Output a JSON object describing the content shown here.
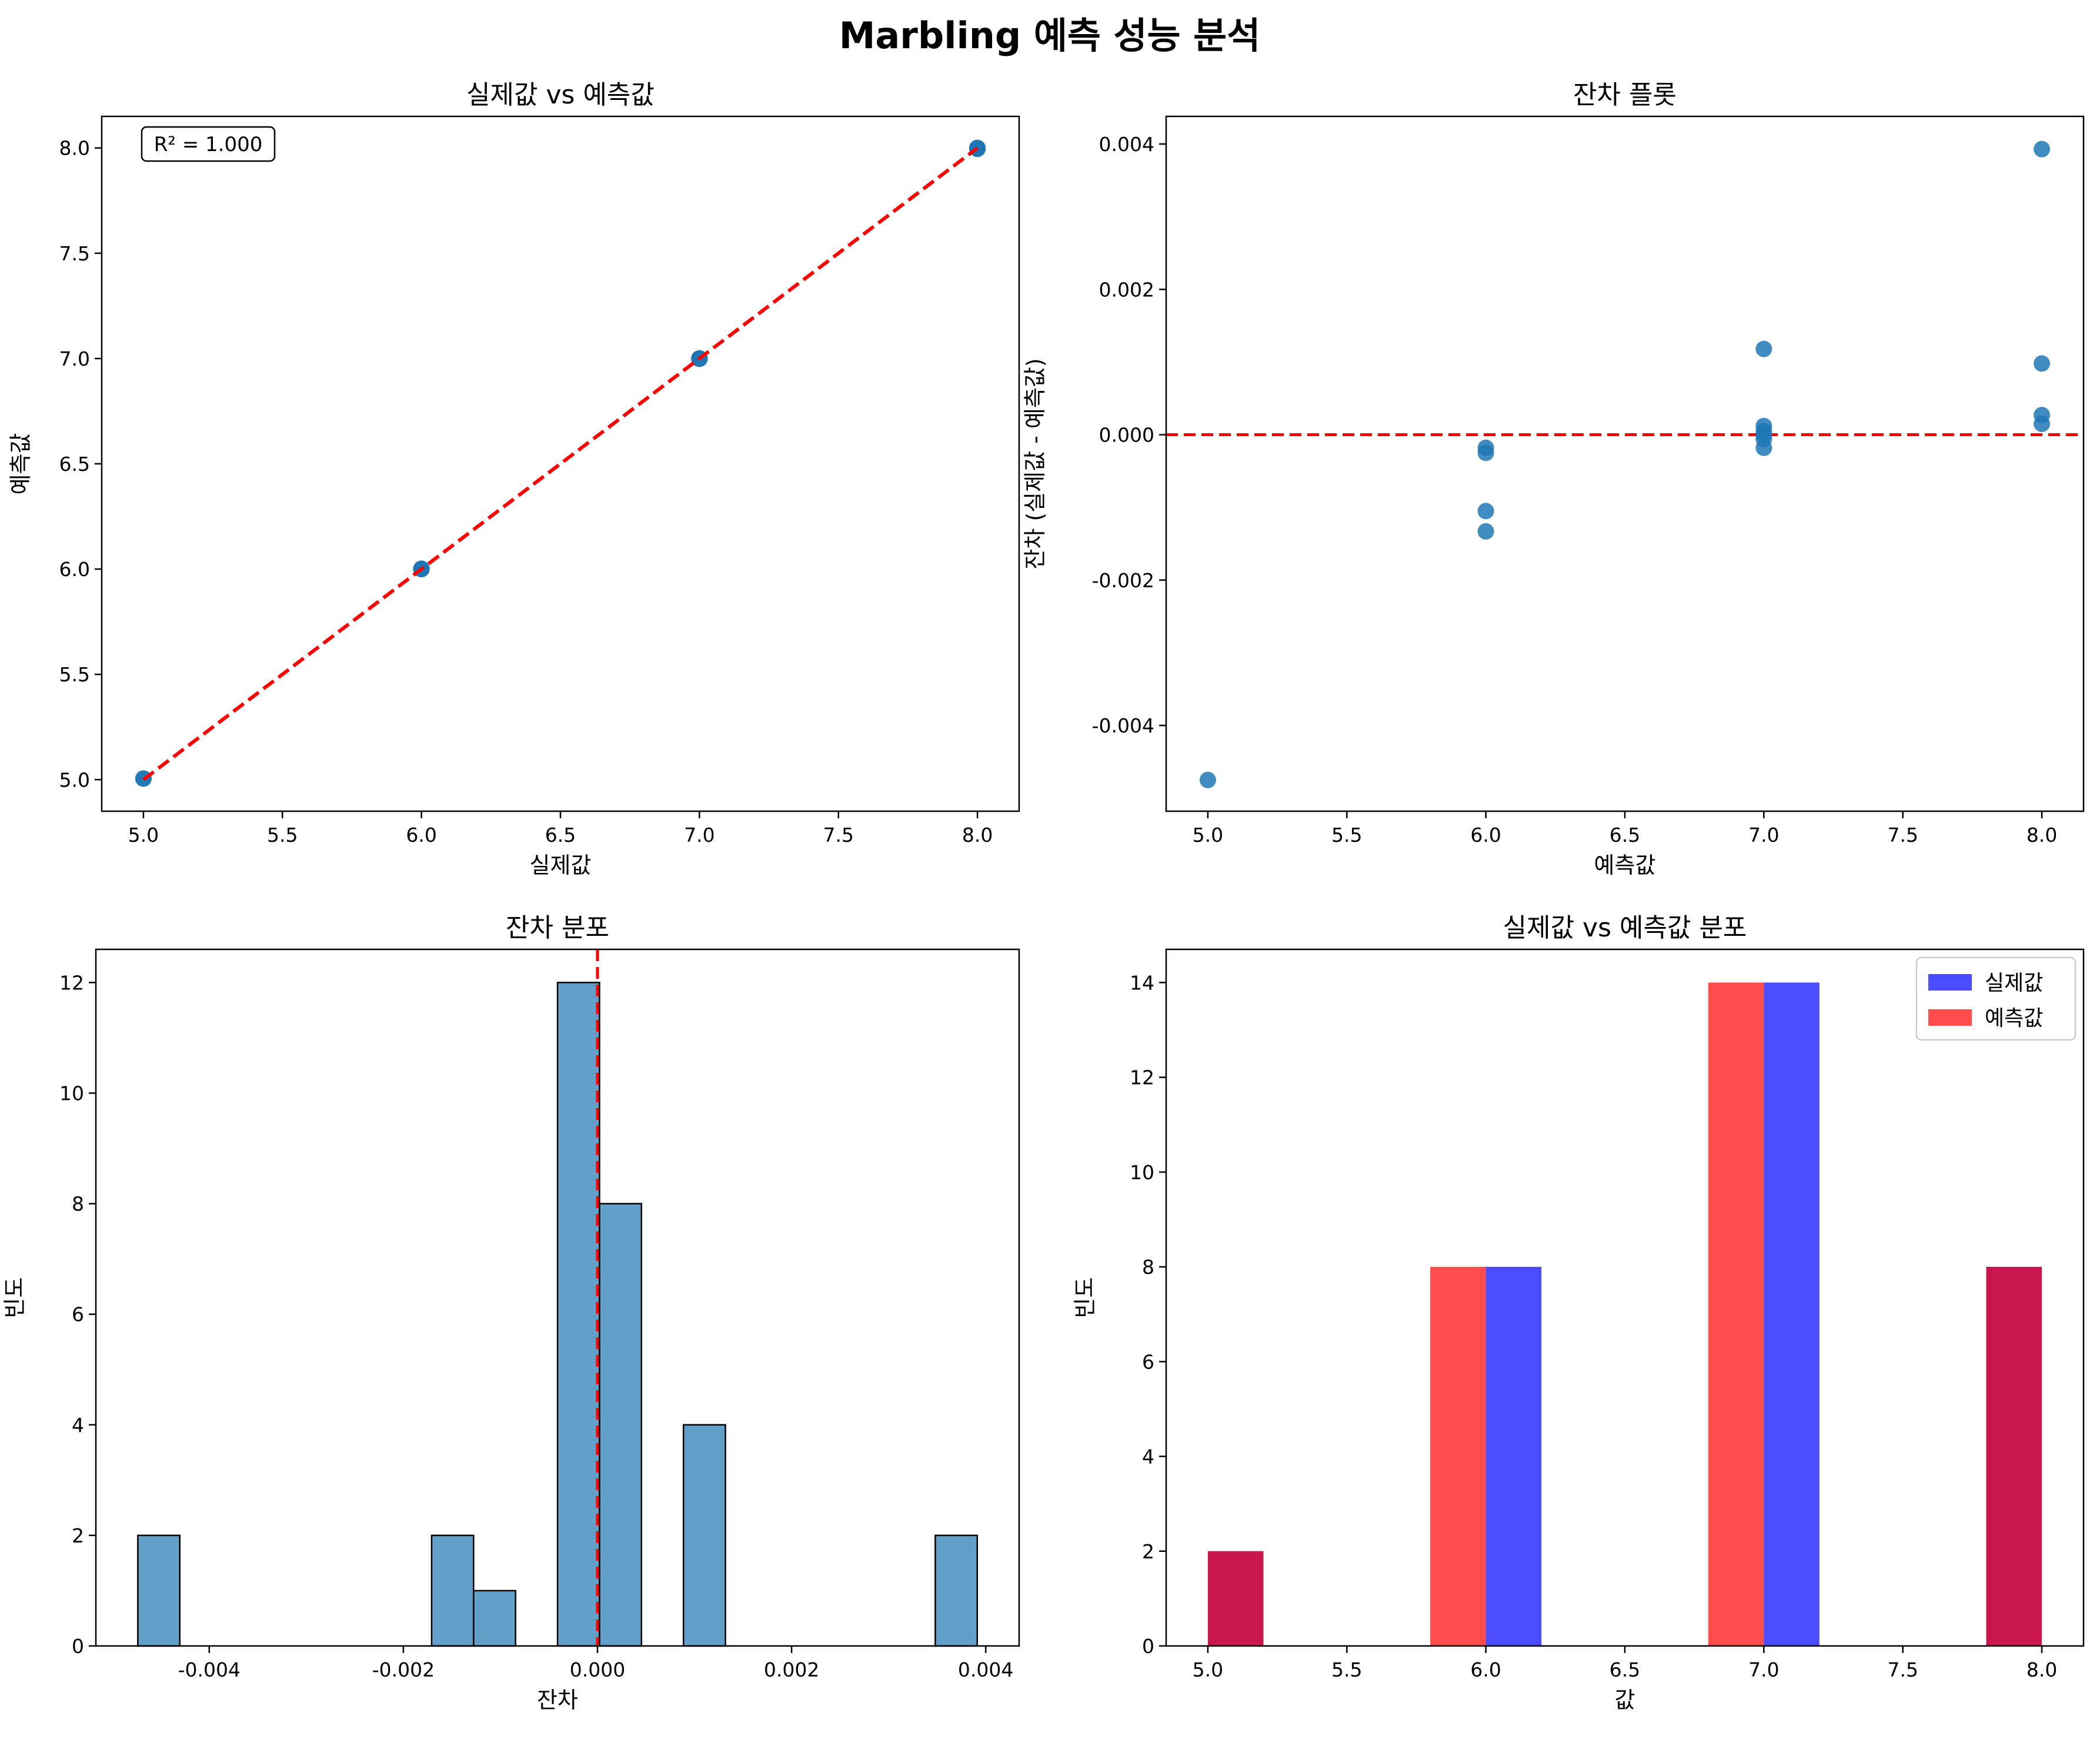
{
  "suptitle": "Marbling 예측 성능 분석",
  "colors": {
    "scatter": "#1f77b4",
    "hist": "#1f77b4",
    "ref_line": "#ff0000",
    "actual": "#0000ff",
    "predicted": "#ff0000"
  },
  "chart_data": [
    {
      "type": "scatter",
      "title": "실제값 vs 예측값",
      "xlabel": "실제값",
      "ylabel": "예측값",
      "xlim": [
        4.85,
        8.15
      ],
      "ylim": [
        4.85,
        8.15
      ],
      "xticks": [
        5.0,
        5.5,
        6.0,
        6.5,
        7.0,
        7.5,
        8.0
      ],
      "yticks": [
        5.0,
        5.5,
        6.0,
        6.5,
        7.0,
        7.5,
        8.0
      ],
      "x": [
        5,
        5,
        6,
        6,
        6,
        6,
        6,
        6,
        6,
        6,
        7,
        7,
        7,
        7,
        7,
        7,
        7,
        7,
        7,
        7,
        7,
        7,
        7,
        7,
        8,
        8,
        8,
        8,
        8,
        8,
        8,
        8
      ],
      "y": [
        5.005,
        5.005,
        6.0002,
        6.0002,
        6.0003,
        6.0003,
        6.0011,
        6.0011,
        6.0013,
        6.0013,
        6.9999,
        6.9999,
        6.9999,
        6.9999,
        7.0,
        7.0,
        7.0,
        7.0,
        7.0001,
        7.0001,
        7.0002,
        7.0002,
        6.9988,
        6.9988,
        7.996,
        7.996,
        7.999,
        7.999,
        7.9997,
        7.9997,
        7.9998,
        7.9998
      ],
      "reference_line": {
        "x": [
          5,
          8
        ],
        "y": [
          5,
          8
        ],
        "style": "dashed"
      },
      "annotation": "R² = 1.000"
    },
    {
      "type": "scatter",
      "title": "잔차 플롯",
      "xlabel": "예측값",
      "ylabel": "잔차 (실제값 - 예측값)",
      "xlim": [
        4.85,
        8.15
      ],
      "ylim": [
        -0.00518,
        0.00438
      ],
      "xticks": [
        5.0,
        5.5,
        6.0,
        6.5,
        7.0,
        7.5,
        8.0
      ],
      "yticks": [
        -0.004,
        -0.002,
        0.0,
        0.002,
        0.004
      ],
      "ytick_labels": [
        "-0.004",
        "-0.002",
        "0.000",
        "0.002",
        "0.004"
      ],
      "x": [
        5,
        6,
        6,
        6,
        6,
        7,
        7,
        7,
        7,
        7,
        7,
        8,
        8,
        8,
        8
      ],
      "y": [
        -0.00475,
        -0.00018,
        -0.00025,
        -0.00105,
        -0.00133,
        0.00118,
        0.00012,
        5e-05,
        0.0,
        -6e-05,
        -0.00018,
        0.00393,
        0.00098,
        0.00027,
        0.00015
      ],
      "reference_line": {
        "y": 0.0,
        "style": "dashed"
      }
    },
    {
      "type": "bar",
      "subtype": "histogram",
      "title": "잔차 분포",
      "xlabel": "잔차",
      "ylabel": "빈도",
      "xlim": [
        -0.0051683,
        0.0043443
      ],
      "ylim": [
        0,
        12.6
      ],
      "xticks": [
        -0.004,
        -0.002,
        0.0,
        0.002,
        0.004
      ],
      "xtick_labels": [
        "-0.004",
        "-0.002",
        "0.000",
        "0.002",
        "0.004"
      ],
      "yticks": [
        0,
        2,
        4,
        6,
        8,
        10,
        12
      ],
      "bin_start": -0.0047359,
      "bin_width": 0.00043244,
      "counts": [
        2,
        0,
        0,
        0,
        0,
        0,
        0,
        2,
        1,
        0,
        12,
        8,
        0,
        4,
        0,
        0,
        0,
        0,
        0,
        2
      ],
      "reference_line": {
        "x": 0.0,
        "style": "dashed"
      }
    },
    {
      "type": "bar",
      "subtype": "overlaid histogram",
      "title": "실제값 vs 예측값 분포",
      "xlabel": "값",
      "ylabel": "빈도",
      "xlim": [
        4.85,
        8.15
      ],
      "ylim": [
        0,
        14.7
      ],
      "xticks": [
        5.0,
        5.5,
        6.0,
        6.5,
        7.0,
        7.5,
        8.0
      ],
      "yticks": [
        0,
        2,
        4,
        6,
        8,
        10,
        12,
        14
      ],
      "legend": "top-right",
      "series": [
        {
          "name": "실제값",
          "bins": [
            [
              5.0,
              5.2,
              2
            ],
            [
              6.0,
              6.2,
              8
            ],
            [
              7.0,
              7.2,
              14
            ],
            [
              7.8,
              8.0,
              8
            ]
          ]
        },
        {
          "name": "예측값",
          "bins": [
            [
              5.0,
              5.2,
              2
            ],
            [
              5.8,
              6.0,
              8
            ],
            [
              6.8,
              7.0,
              14
            ],
            [
              7.8,
              8.0,
              8
            ]
          ]
        }
      ]
    }
  ]
}
